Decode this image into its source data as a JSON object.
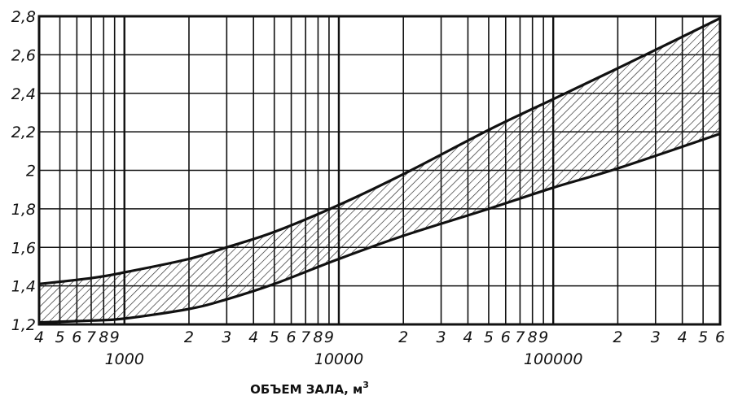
{
  "chart_data": {
    "type": "area",
    "xlabel": "ОБЪЕМ ЗАЛА, м",
    "xlabel_superscript": "3",
    "ylabel": "",
    "xscale": "log",
    "xlim": [
      400,
      600000
    ],
    "ylim": [
      1.2,
      2.8
    ],
    "grid": true,
    "y_ticks": [
      "1,2",
      "1,4",
      "1,6",
      "1,8",
      "2",
      "2,2",
      "2,4",
      "2,6",
      "2,8"
    ],
    "x_minor_tick_labels": [
      {
        "x": 400,
        "label": "4"
      },
      {
        "x": 500,
        "label": "5"
      },
      {
        "x": 600,
        "label": "6"
      },
      {
        "x": 700,
        "label": "7"
      },
      {
        "x": 800,
        "label": "8"
      },
      {
        "x": 900,
        "label": "9"
      },
      {
        "x": 2000,
        "label": "2"
      },
      {
        "x": 3000,
        "label": "3"
      },
      {
        "x": 4000,
        "label": "4"
      },
      {
        "x": 5000,
        "label": "5"
      },
      {
        "x": 6000,
        "label": "6"
      },
      {
        "x": 7000,
        "label": "7"
      },
      {
        "x": 8000,
        "label": "8"
      },
      {
        "x": 9000,
        "label": "9"
      },
      {
        "x": 20000,
        "label": "2"
      },
      {
        "x": 30000,
        "label": "3"
      },
      {
        "x": 40000,
        "label": "4"
      },
      {
        "x": 50000,
        "label": "5"
      },
      {
        "x": 60000,
        "label": "6"
      },
      {
        "x": 70000,
        "label": "7"
      },
      {
        "x": 80000,
        "label": "8"
      },
      {
        "x": 90000,
        "label": "9"
      },
      {
        "x": 200000,
        "label": "2"
      },
      {
        "x": 300000,
        "label": "3"
      },
      {
        "x": 400000,
        "label": "4"
      },
      {
        "x": 500000,
        "label": "5"
      },
      {
        "x": 600000,
        "label": "6"
      }
    ],
    "x_decade_labels": [
      {
        "x": 1000,
        "label": "1000"
      },
      {
        "x": 10000,
        "label": "10000"
      },
      {
        "x": 100000,
        "label": "100000"
      }
    ],
    "series": [
      {
        "x": [
          400,
          700,
          1000,
          2000,
          3000,
          5000,
          10000,
          20000,
          50000,
          100000,
          200000,
          600000
        ],
        "values": [
          1.41,
          1.44,
          1.47,
          1.54,
          1.6,
          1.68,
          1.82,
          1.98,
          2.21,
          2.37,
          2.53,
          2.79
        ]
      },
      {
        "x": [
          400,
          700,
          1000,
          2000,
          3000,
          5000,
          10000,
          20000,
          50000,
          100000,
          200000,
          600000
        ],
        "values": [
          1.21,
          1.22,
          1.23,
          1.28,
          1.33,
          1.41,
          1.54,
          1.66,
          1.8,
          1.91,
          2.01,
          2.19
        ]
      }
    ],
    "band": "hatched region between the two curves"
  }
}
